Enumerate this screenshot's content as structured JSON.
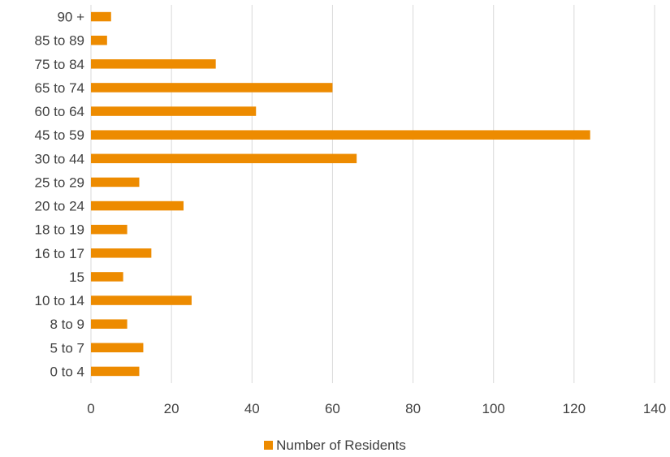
{
  "chart_data": {
    "type": "bar",
    "orientation": "horizontal",
    "title": "",
    "xlabel": "",
    "ylabel": "",
    "categories": [
      "0 to 4",
      "5 to 7",
      "8 to 9",
      "10 to 14",
      "15",
      "16 to 17",
      "18 to 19",
      "20 to 24",
      "25 to 29",
      "30 to 44",
      "45 to 59",
      "60 to 64",
      "65 to 74",
      "75 to 84",
      "85 to 89",
      "90 +"
    ],
    "series": [
      {
        "name": "Number of Residents",
        "color": "#ED8B00",
        "values": [
          12,
          13,
          9,
          25,
          8,
          15,
          9,
          23,
          12,
          66,
          124,
          41,
          60,
          31,
          4,
          5
        ]
      }
    ],
    "xlim": [
      0,
      140
    ],
    "xticks": [
      0,
      20,
      40,
      60,
      80,
      100,
      120,
      140
    ],
    "grid": "vertical",
    "legend_position": "bottom"
  }
}
